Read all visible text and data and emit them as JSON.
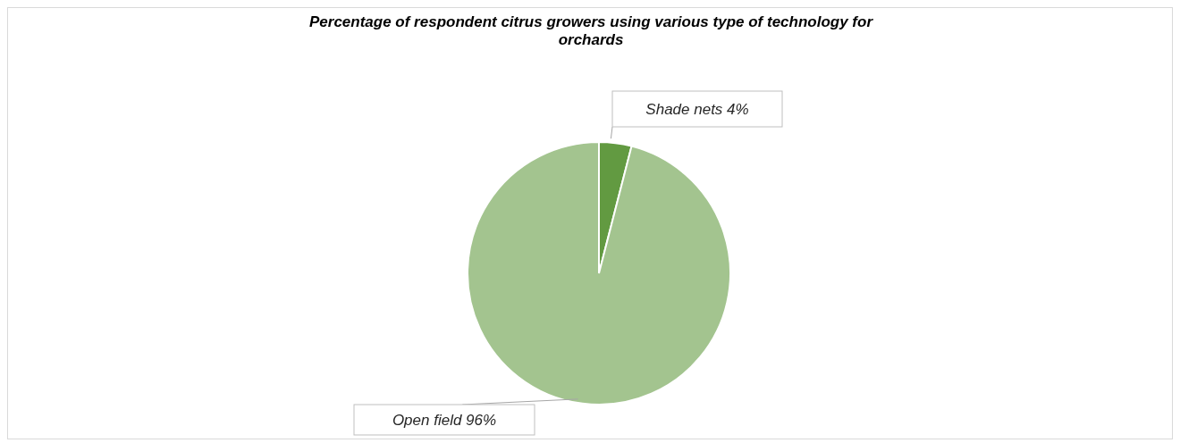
{
  "chart_data": {
    "type": "pie",
    "title": "Percentage of respondent citrus growers using various type of technology for orchards",
    "categories": [
      "Shade nets",
      "Open field"
    ],
    "values": [
      4,
      96
    ],
    "colors": [
      "#629a41",
      "#a3c48f"
    ],
    "value_labels": [
      "4%",
      "96%"
    ]
  }
}
